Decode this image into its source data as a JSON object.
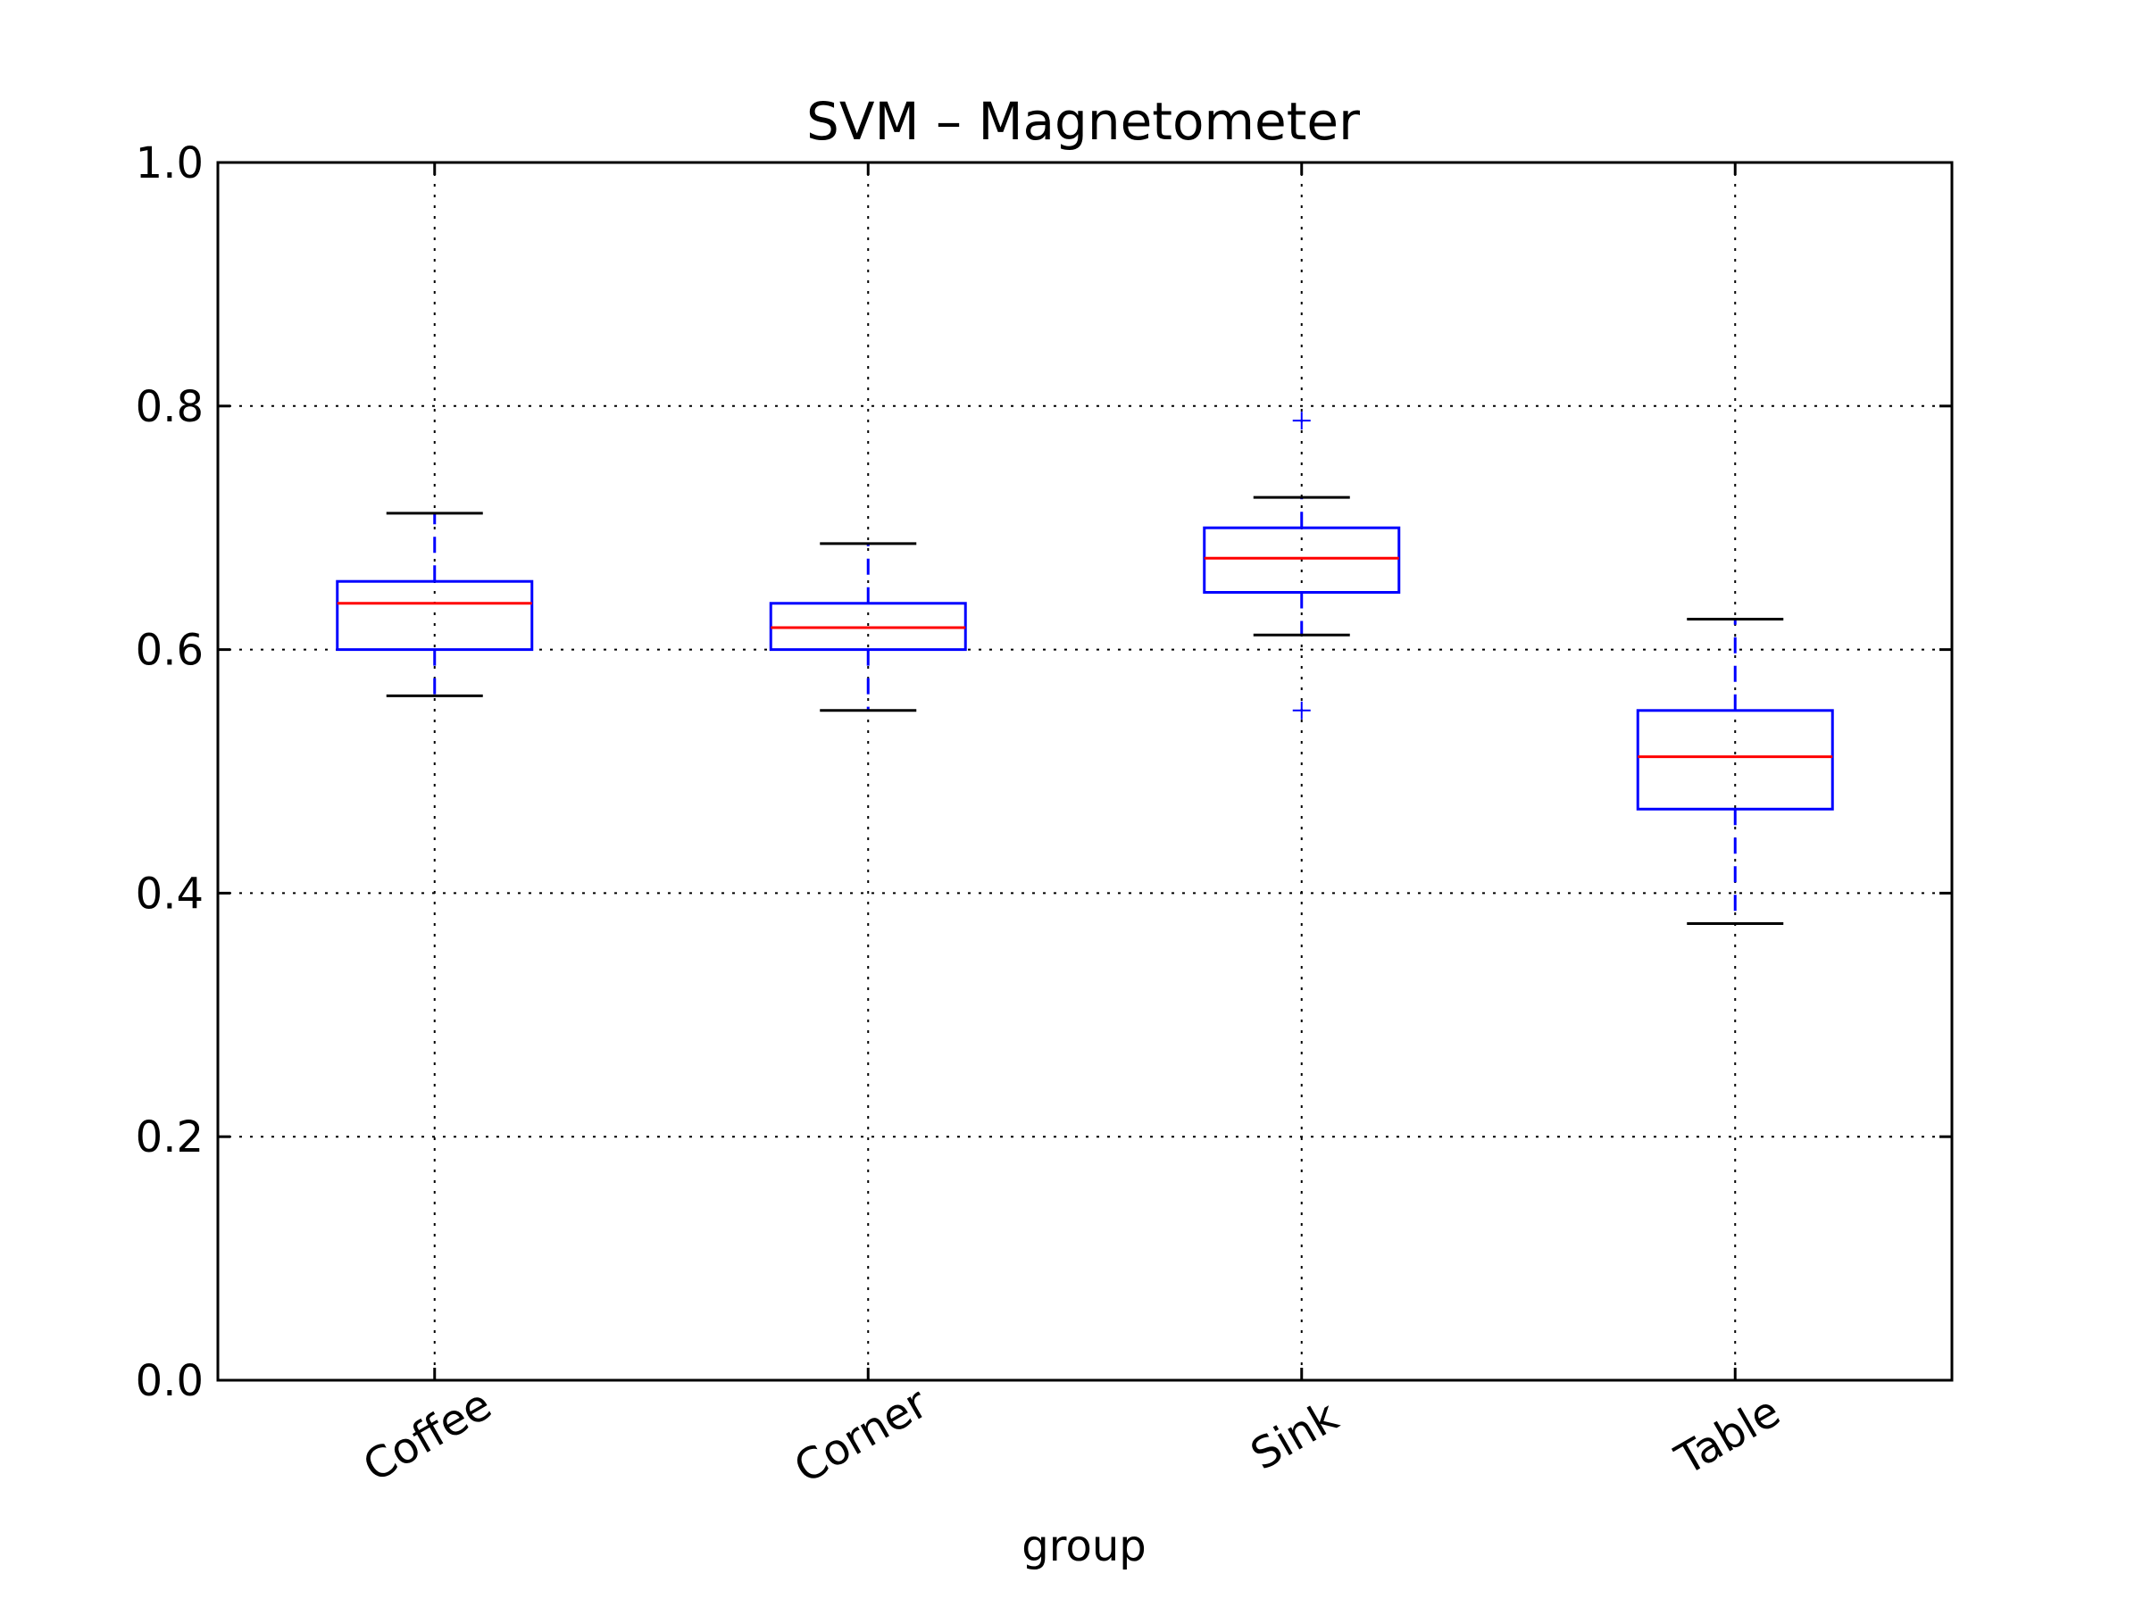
{
  "chart_data": {
    "type": "box",
    "title": "SVM – Magnetometer",
    "xlabel": "group",
    "ylabel": "",
    "ylim": [
      0.0,
      1.0
    ],
    "yticks": [
      "0.0",
      "0.2",
      "0.4",
      "0.6",
      "0.8",
      "1.0"
    ],
    "grid": true,
    "categories": [
      "Coffee",
      "Corner",
      "Sink",
      "Table"
    ],
    "boxes": [
      {
        "category": "Coffee",
        "whisker_low": 0.562,
        "q1": 0.6,
        "median": 0.638,
        "q3": 0.656,
        "whisker_high": 0.712,
        "outliers": []
      },
      {
        "category": "Corner",
        "whisker_low": 0.55,
        "q1": 0.6,
        "median": 0.618,
        "q3": 0.638,
        "whisker_high": 0.687,
        "outliers": []
      },
      {
        "category": "Sink",
        "whisker_low": 0.612,
        "q1": 0.647,
        "median": 0.675,
        "q3": 0.7,
        "whisker_high": 0.725,
        "outliers": [
          0.788,
          0.55
        ]
      },
      {
        "category": "Table",
        "whisker_low": 0.375,
        "q1": 0.469,
        "median": 0.512,
        "q3": 0.55,
        "whisker_high": 0.625,
        "outliers": []
      }
    ],
    "colors": {
      "box": "#0000ff",
      "median": "#ff0000",
      "whisker_cap": "#000000",
      "outlier": "#0000ff",
      "grid": "#000000"
    }
  }
}
